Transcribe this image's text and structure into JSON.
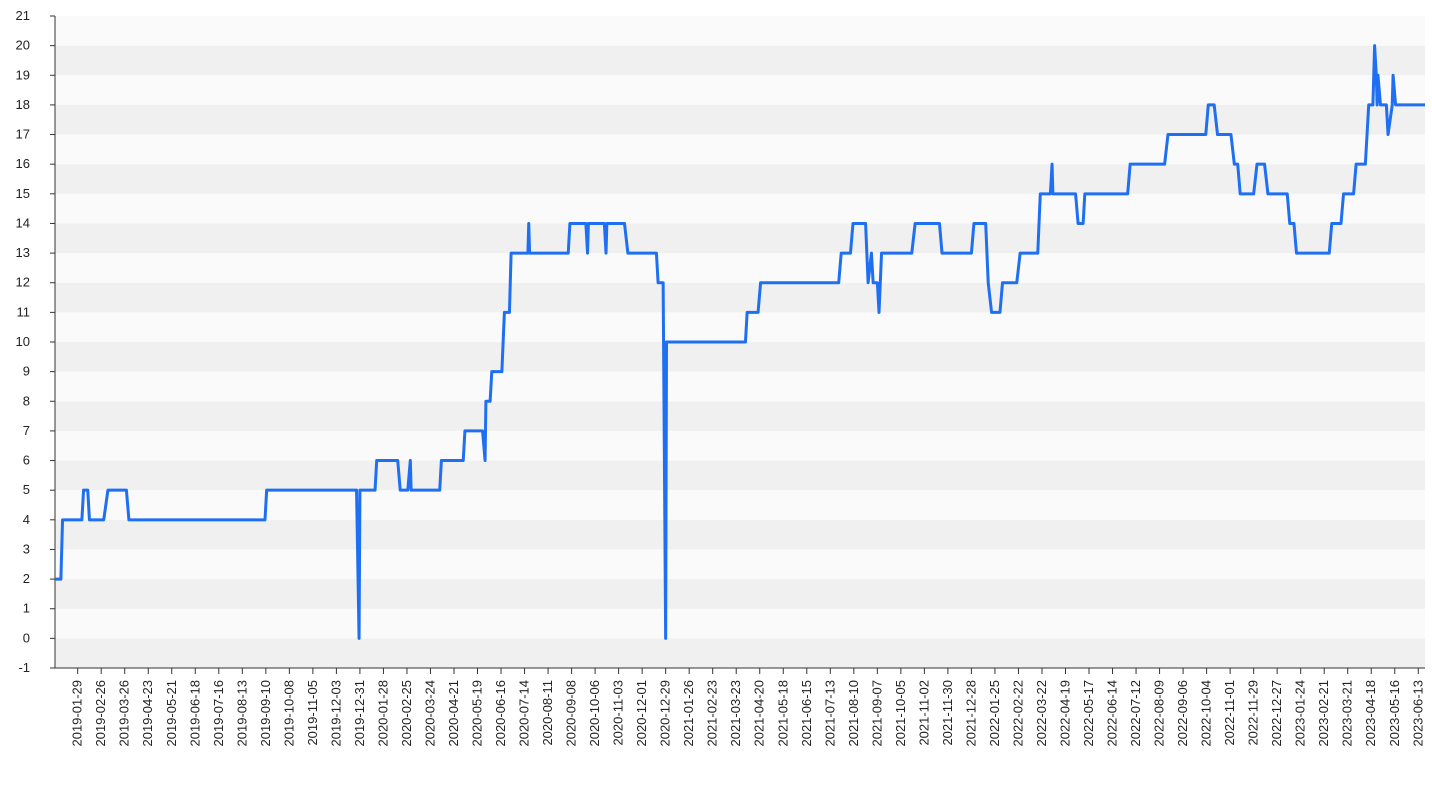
{
  "chart_data": {
    "type": "line",
    "grid": true,
    "bands": [
      "#f0f0f0",
      "#fafafa"
    ],
    "xlim": [
      "2019-01-02",
      "2023-06-21"
    ],
    "ylim": [
      -1,
      21
    ],
    "yticks": [
      -1,
      0,
      1,
      2,
      3,
      4,
      5,
      6,
      7,
      8,
      9,
      10,
      11,
      12,
      13,
      14,
      15,
      16,
      17,
      18,
      19,
      20,
      21
    ],
    "xticks": [
      "2019-01-29",
      "2019-02-26",
      "2019-03-26",
      "2019-04-23",
      "2019-05-21",
      "2019-06-18",
      "2019-07-16",
      "2019-08-13",
      "2019-09-10",
      "2019-10-08",
      "2019-11-05",
      "2019-12-03",
      "2019-12-31",
      "2020-01-28",
      "2020-02-25",
      "2020-03-24",
      "2020-04-21",
      "2020-05-19",
      "2020-06-16",
      "2020-07-14",
      "2020-08-11",
      "2020-09-08",
      "2020-10-06",
      "2020-11-03",
      "2020-12-01",
      "2020-12-29",
      "2021-01-26",
      "2021-02-23",
      "2021-03-23",
      "2021-04-20",
      "2021-05-18",
      "2021-06-15",
      "2021-07-13",
      "2021-08-10",
      "2021-09-07",
      "2021-10-05",
      "2021-11-02",
      "2021-11-30",
      "2021-12-28",
      "2022-01-25",
      "2022-02-22",
      "2022-03-22",
      "2022-04-19",
      "2022-05-17",
      "2022-06-14",
      "2022-07-12",
      "2022-08-09",
      "2022-09-06",
      "2022-10-04",
      "2022-11-01",
      "2022-11-29",
      "2022-12-27",
      "2023-01-24",
      "2023-02-21",
      "2023-03-21",
      "2023-04-18",
      "2023-05-16",
      "2023-06-13"
    ],
    "x": [
      "2019-01-02",
      "2019-01-09",
      "2019-01-11",
      "2019-02-03",
      "2019-02-05",
      "2019-02-10",
      "2019-02-12",
      "2019-03-01",
      "2019-03-06",
      "2019-03-28",
      "2019-03-31",
      "2019-09-09",
      "2019-09-11",
      "2019-12-27",
      "2019-12-30",
      "2019-12-31",
      "2020-01-18",
      "2020-01-20",
      "2020-02-14",
      "2020-02-17",
      "2020-02-26",
      "2020-02-29",
      "2020-03-01",
      "2020-04-04",
      "2020-04-06",
      "2020-05-02",
      "2020-05-04",
      "2020-05-25",
      "2020-05-28",
      "2020-05-29",
      "2020-06-03",
      "2020-06-05",
      "2020-06-17",
      "2020-06-20",
      "2020-06-26",
      "2020-06-28",
      "2020-07-18",
      "2020-07-19",
      "2020-07-20",
      "2020-09-04",
      "2020-09-06",
      "2020-09-25",
      "2020-09-27",
      "2020-09-28",
      "2020-10-17",
      "2020-10-19",
      "2020-10-20",
      "2020-11-10",
      "2020-11-14",
      "2020-12-18",
      "2020-12-20",
      "2020-12-26",
      "2020-12-29",
      "2020-12-30",
      "2021-04-03",
      "2021-04-05",
      "2021-04-18",
      "2021-04-21",
      "2021-07-23",
      "2021-07-26",
      "2021-08-06",
      "2021-08-09",
      "2021-08-24",
      "2021-08-27",
      "2021-08-31",
      "2021-09-02",
      "2021-09-07",
      "2021-09-09",
      "2021-09-12",
      "2021-10-18",
      "2021-10-22",
      "2021-11-20",
      "2021-11-23",
      "2021-12-28",
      "2021-12-31",
      "2022-01-14",
      "2022-01-17",
      "2022-01-21",
      "2022-01-31",
      "2022-02-03",
      "2022-02-20",
      "2022-02-24",
      "2022-03-17",
      "2022-03-20",
      "2022-04-01",
      "2022-04-03",
      "2022-04-04",
      "2022-05-01",
      "2022-05-04",
      "2022-05-10",
      "2022-05-12",
      "2022-07-02",
      "2022-07-05",
      "2022-08-15",
      "2022-08-19",
      "2022-10-03",
      "2022-10-06",
      "2022-10-13",
      "2022-10-17",
      "2022-11-02",
      "2022-11-06",
      "2022-11-10",
      "2022-11-13",
      "2022-11-29",
      "2022-12-03",
      "2022-12-12",
      "2022-12-16",
      "2023-01-08",
      "2023-01-11",
      "2023-01-16",
      "2023-01-19",
      "2023-02-27",
      "2023-03-02",
      "2023-03-13",
      "2023-03-16",
      "2023-03-28",
      "2023-03-31",
      "2023-04-11",
      "2023-04-15",
      "2023-04-20",
      "2023-04-22",
      "2023-04-24",
      "2023-04-25",
      "2023-04-26",
      "2023-04-29",
      "2023-05-06",
      "2023-05-08",
      "2023-05-13",
      "2023-05-14",
      "2023-05-17",
      "2023-06-21"
    ],
    "series": [
      {
        "color": "#1f6ff2",
        "values": [
          2,
          2,
          4,
          4,
          5,
          5,
          4,
          4,
          5,
          5,
          4,
          4,
          5,
          5,
          0,
          5,
          5,
          6,
          6,
          5,
          5,
          6,
          5,
          5,
          6,
          6,
          7,
          7,
          6,
          8,
          8,
          9,
          9,
          11,
          11,
          13,
          13,
          14,
          13,
          13,
          14,
          14,
          13,
          14,
          14,
          13,
          14,
          14,
          13,
          13,
          12,
          12,
          0,
          10,
          10,
          11,
          11,
          12,
          12,
          13,
          13,
          14,
          14,
          12,
          13,
          12,
          12,
          11,
          13,
          13,
          14,
          14,
          13,
          13,
          14,
          14,
          12,
          11,
          11,
          12,
          12,
          13,
          13,
          15,
          15,
          16,
          15,
          15,
          14,
          14,
          15,
          15,
          16,
          16,
          17,
          17,
          18,
          18,
          17,
          17,
          16,
          16,
          15,
          15,
          16,
          16,
          15,
          15,
          14,
          14,
          13,
          13,
          14,
          14,
          15,
          15,
          16,
          16,
          18,
          18,
          20,
          19,
          18,
          19,
          18,
          18,
          17,
          18,
          19,
          18,
          18
        ]
      }
    ]
  }
}
